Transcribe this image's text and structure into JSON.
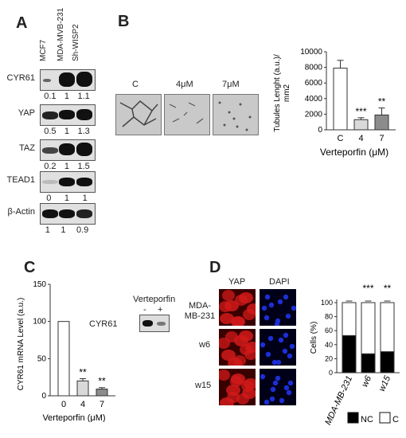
{
  "panelA": {
    "letter": "A",
    "lanes": [
      "MCF7",
      "MDA-MVB-231",
      "Sh-WISP2"
    ],
    "blots": [
      {
        "label": "CYR61",
        "ratios": [
          "0.1",
          "1",
          "1.1"
        ]
      },
      {
        "label": "YAP",
        "ratios": [
          "0.5",
          "1",
          "1.3"
        ]
      },
      {
        "label": "TAZ",
        "ratios": [
          "0.2",
          "1",
          "1.5"
        ]
      },
      {
        "label": "TEAD1",
        "ratios": [
          "0",
          "1",
          "1"
        ]
      },
      {
        "label": "β-Actin",
        "ratios": [
          "1",
          "1",
          "0.9"
        ]
      }
    ]
  },
  "panelB": {
    "letter": "B",
    "image_labels": [
      "C",
      "4μM",
      "7μM"
    ]
  },
  "panelC": {
    "letter": "C",
    "inset_title": "Verteporfin",
    "inset_label": "CYR61",
    "inset_signs": [
      "-",
      "+"
    ]
  },
  "panelD": {
    "letter": "D",
    "columns": [
      "YAP",
      "DAPI"
    ],
    "rows": [
      "MDA-MB-231",
      "w6",
      "w15"
    ],
    "legend": [
      "NC",
      "C"
    ]
  },
  "colors": {
    "white_bar": "#ffffff",
    "light_grey_bar": "#d9d9d9",
    "dark_grey_bar": "#8c8c8c",
    "black": "#000000",
    "red_stain": "#d11a1a",
    "blue_stain": "#1c2fd6"
  },
  "chart_data": [
    {
      "type": "bar",
      "panel": "B",
      "categories": [
        "C",
        "4",
        "7"
      ],
      "values": [
        7900,
        1300,
        1900
      ],
      "errors": [
        1000,
        250,
        900
      ],
      "significance": [
        "",
        "***",
        "**"
      ],
      "xlabel": "Verteporfin (μM)",
      "ylabel": "Tubules Lenght (a.u.)/mm2",
      "yticks": [
        0,
        2000,
        4000,
        6000,
        8000,
        10000
      ],
      "ylim": [
        0,
        10000
      ]
    },
    {
      "type": "bar",
      "panel": "C",
      "categories": [
        "0",
        "4",
        "7"
      ],
      "values": [
        100,
        20,
        9
      ],
      "errors": [
        0,
        3,
        2
      ],
      "significance": [
        "",
        "**",
        "**"
      ],
      "xlabel": "Verteporfin (μM)",
      "ylabel": "CYR61 mRNA Level (a.u.)",
      "yticks": [
        0,
        50,
        100,
        150
      ],
      "ylim": [
        0,
        150
      ]
    },
    {
      "type": "bar",
      "panel": "D",
      "stacked": true,
      "categories": [
        "MDA-MB-231",
        "w6",
        "w15"
      ],
      "series": [
        {
          "name": "NC",
          "values": [
            53,
            27,
            30
          ]
        },
        {
          "name": "C",
          "values": [
            47,
            73,
            70
          ]
        }
      ],
      "significance": [
        "",
        "***",
        "**"
      ],
      "ylabel": "Cells (%)",
      "yticks": [
        0,
        20,
        40,
        60,
        80,
        100
      ],
      "ylim": [
        0,
        100
      ]
    }
  ]
}
